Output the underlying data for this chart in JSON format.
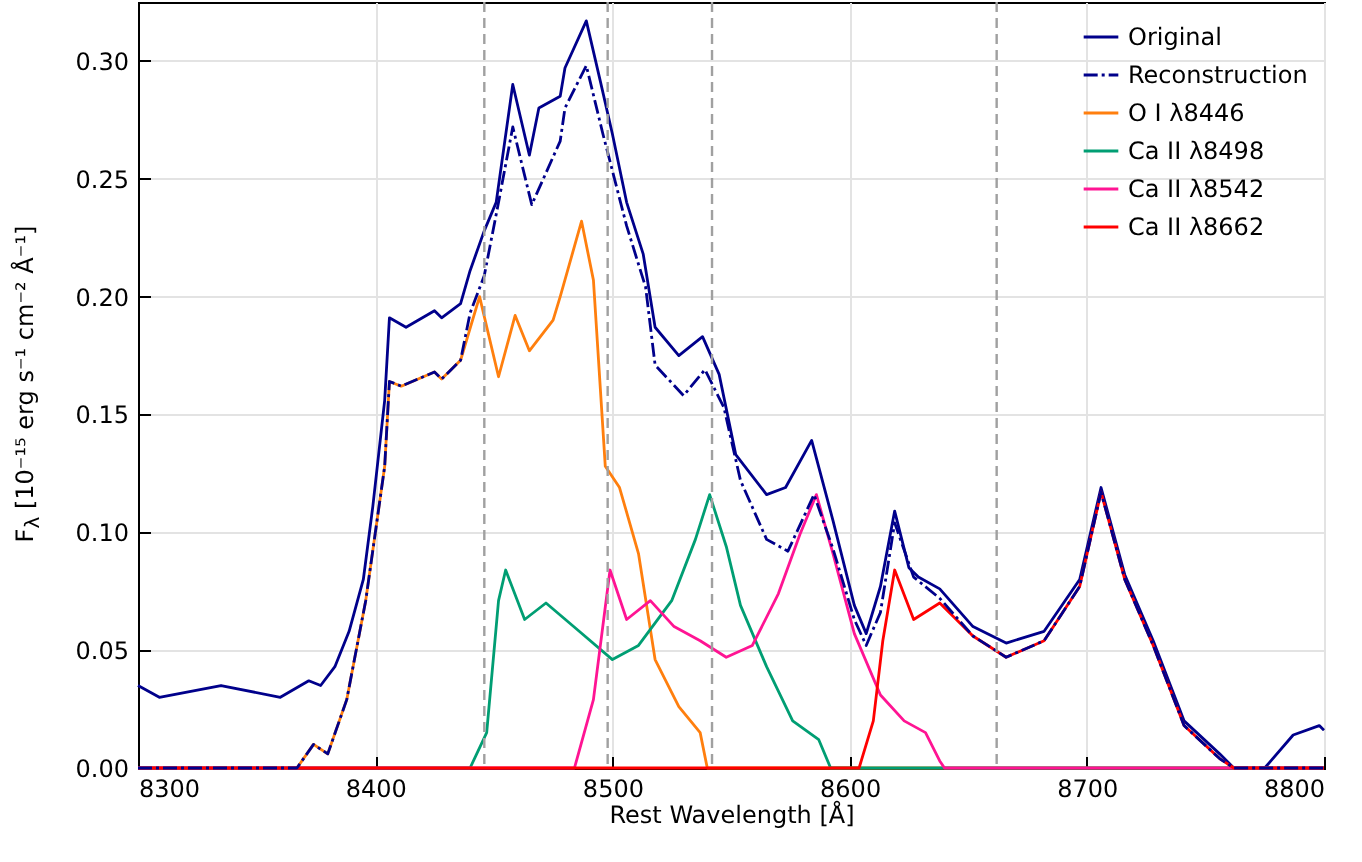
{
  "chart_data": {
    "type": "line",
    "xlabel": "Rest Wavelength [Å]",
    "ylabel": "F$_{λ}$ [10⁻¹⁵ erg s⁻¹ cm⁻² Å⁻¹]",
    "xlim": [
      8300,
      8800
    ],
    "xticks": [
      8300,
      8400,
      8500,
      8600,
      8700,
      8800
    ],
    "ylim": [
      0,
      0.325
    ],
    "yticks": [
      {
        "value": 0,
        "label": "0.00"
      },
      {
        "value": 0.05,
        "label": "0.05"
      },
      {
        "value": 0.1,
        "label": "0.10"
      },
      {
        "value": 0.15,
        "label": "0.15"
      },
      {
        "value": 0.2,
        "label": "0.20"
      },
      {
        "value": 0.25,
        "label": "0.25"
      },
      {
        "value": 0.3,
        "label": "0.30"
      }
    ],
    "grid": true,
    "legend": "top right",
    "marker": "none",
    "series": [
      {
        "name": "Original",
        "color": "#00008b",
        "line_style": "solid",
        "x": [
          8300,
          8309,
          8335,
          8360,
          8372,
          8377,
          8383,
          8389,
          8395,
          8399,
          8404,
          8406,
          8413,
          8425,
          8428,
          8436,
          8440,
          8446,
          8451,
          8458,
          8465,
          8469,
          8478,
          8480,
          8489,
          8495,
          8500,
          8506,
          8513,
          8518,
          8528,
          8538,
          8545,
          8552,
          8565,
          8573,
          8584,
          8593,
          8602,
          8607,
          8613,
          8619,
          8625,
          8629,
          8638,
          8652,
          8666,
          8682,
          8697,
          8706,
          8716,
          8728,
          8741,
          8756,
          8762,
          8775,
          8787,
          8798,
          8800
        ],
        "values": [
          0.035,
          0.03,
          0.035,
          0.03,
          0.037,
          0.035,
          0.043,
          0.058,
          0.08,
          0.111,
          0.156,
          0.191,
          0.187,
          0.194,
          0.191,
          0.197,
          0.211,
          0.228,
          0.24,
          0.29,
          0.26,
          0.28,
          0.285,
          0.297,
          0.317,
          0.291,
          0.269,
          0.24,
          0.218,
          0.187,
          0.175,
          0.183,
          0.167,
          0.133,
          0.116,
          0.119,
          0.139,
          0.105,
          0.069,
          0.057,
          0.077,
          0.109,
          0.085,
          0.081,
          0.076,
          0.06,
          0.053,
          0.058,
          0.08,
          0.119,
          0.082,
          0.054,
          0.02,
          0.006,
          0,
          0,
          0.014,
          0.018,
          0.016
        ]
      },
      {
        "name": "Reconstruction",
        "color": "#00008b",
        "line_style": "dashdot",
        "x": [
          8300,
          8367,
          8374,
          8380,
          8388,
          8396,
          8404,
          8406,
          8411,
          8425,
          8428,
          8436,
          8440,
          8446,
          8452,
          8458,
          8466,
          8478,
          8480,
          8489,
          8496,
          8506,
          8514,
          8518,
          8530,
          8539,
          8547,
          8554,
          8565,
          8574,
          8585,
          8593,
          8602,
          8607,
          8613,
          8619,
          8627,
          8638,
          8652,
          8666,
          8682,
          8697,
          8706,
          8716,
          8728,
          8741,
          8756,
          8762,
          8800
        ],
        "values": [
          0,
          0,
          0.01,
          0.006,
          0.029,
          0.071,
          0.128,
          0.164,
          0.162,
          0.168,
          0.165,
          0.173,
          0.193,
          0.209,
          0.24,
          0.272,
          0.239,
          0.266,
          0.28,
          0.298,
          0.269,
          0.23,
          0.204,
          0.171,
          0.158,
          0.169,
          0.153,
          0.122,
          0.097,
          0.092,
          0.116,
          0.093,
          0.063,
          0.052,
          0.066,
          0.104,
          0.081,
          0.072,
          0.056,
          0.047,
          0.054,
          0.077,
          0.117,
          0.08,
          0.052,
          0.018,
          0.004,
          0,
          0
        ]
      },
      {
        "name": "O I λ8446",
        "color": "#ff7f0e",
        "line_style": "solid",
        "x": [
          8300,
          8367,
          8374,
          8380,
          8388,
          8396,
          8404,
          8406,
          8411,
          8425,
          8428,
          8436,
          8444,
          8452,
          8459,
          8465,
          8475,
          8478,
          8487,
          8492,
          8497,
          8503,
          8511,
          8518,
          8528,
          8537,
          8540,
          8800
        ],
        "values": [
          0,
          0,
          0.01,
          0.006,
          0.029,
          0.071,
          0.128,
          0.164,
          0.162,
          0.168,
          0.165,
          0.173,
          0.2,
          0.166,
          0.192,
          0.177,
          0.19,
          0.2,
          0.232,
          0.207,
          0.128,
          0.119,
          0.091,
          0.046,
          0.026,
          0.015,
          0,
          0
        ]
      },
      {
        "name": "Ca II λ8498",
        "color": "#009e73",
        "line_style": "solid",
        "x": [
          8300,
          8440,
          8447,
          8452,
          8455,
          8463,
          8472,
          8486,
          8500,
          8511,
          8525,
          8535,
          8541,
          8548,
          8554,
          8565,
          8576,
          8587,
          8592,
          8800
        ],
        "values": [
          0,
          0,
          0.015,
          0.071,
          0.084,
          0.063,
          0.07,
          0.058,
          0.046,
          0.052,
          0.071,
          0.097,
          0.116,
          0.094,
          0.069,
          0.043,
          0.02,
          0.012,
          0,
          0
        ]
      },
      {
        "name": "Ca II λ8542",
        "color": "#ff1493",
        "line_style": "solid",
        "x": [
          8300,
          8484,
          8492,
          8499,
          8506,
          8516,
          8526,
          8537,
          8548,
          8559,
          8570,
          8579,
          8586,
          8593,
          8602,
          8613,
          8623,
          8632,
          8638,
          8640,
          8800
        ],
        "values": [
          0,
          0,
          0.029,
          0.084,
          0.063,
          0.071,
          0.06,
          0.054,
          0.047,
          0.052,
          0.074,
          0.099,
          0.116,
          0.091,
          0.057,
          0.031,
          0.02,
          0.015,
          0.003,
          0,
          0
        ]
      },
      {
        "name": "Ca II λ8662",
        "color": "#ff0000",
        "line_style": "solid",
        "x": [
          8300,
          8604,
          8610,
          8614,
          8619,
          8627,
          8638,
          8652,
          8666,
          8682,
          8697,
          8706,
          8716,
          8728,
          8741,
          8756,
          8762,
          8800
        ],
        "values": [
          0,
          0,
          0.02,
          0.054,
          0.084,
          0.063,
          0.07,
          0.056,
          0.047,
          0.054,
          0.077,
          0.117,
          0.08,
          0.052,
          0.018,
          0.004,
          0,
          0
        ]
      }
    ],
    "ref_lines": [
      {
        "axis": "x",
        "value": 8446,
        "color": "#a0a0a0",
        "line_style": "dashed"
      },
      {
        "axis": "x",
        "value": 8498,
        "color": "#a0a0a0",
        "line_style": "dashed"
      },
      {
        "axis": "x",
        "value": 8542,
        "color": "#a0a0a0",
        "line_style": "dashed"
      },
      {
        "axis": "x",
        "value": 8662,
        "color": "#a0a0a0",
        "line_style": "dashed"
      }
    ]
  }
}
